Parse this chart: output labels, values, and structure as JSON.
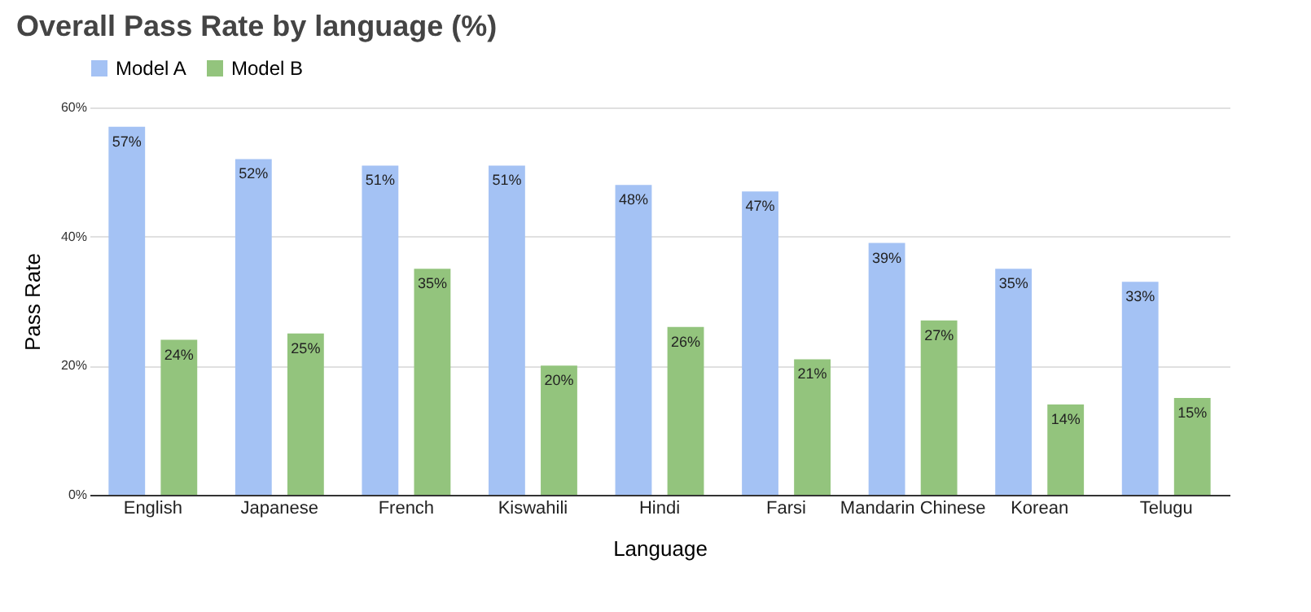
{
  "chart_data": {
    "type": "bar",
    "title": "Overall Pass Rate by language (%)",
    "xlabel": "Language",
    "ylabel": "Pass Rate",
    "categories": [
      "English",
      "Japanese",
      "French",
      "Kiswahili",
      "Hindi",
      "Farsi",
      "Mandarin Chinese",
      "Korean",
      "Telugu"
    ],
    "series": [
      {
        "name": "Model A",
        "color": "#a4c2f4",
        "values": [
          57,
          52,
          51,
          51,
          48,
          47,
          39,
          35,
          33
        ],
        "value_labels": [
          "57%",
          "52%",
          "51%",
          "51%",
          "48%",
          "47%",
          "39%",
          "35%",
          "33%"
        ]
      },
      {
        "name": "Model B",
        "color": "#93c47d",
        "values": [
          24,
          25,
          35,
          20,
          26,
          21,
          27,
          14,
          15
        ],
        "value_labels": [
          "24%",
          "25%",
          "35%",
          "20%",
          "26%",
          "21%",
          "27%",
          "14%",
          "15%"
        ]
      }
    ],
    "ylim": [
      0,
      60
    ],
    "yticks": [
      {
        "value": 0,
        "label": "0%"
      },
      {
        "value": 20,
        "label": "20%"
      },
      {
        "value": 40,
        "label": "40%"
      },
      {
        "value": 60,
        "label": "60%"
      }
    ],
    "grid": "y",
    "legend": "top"
  }
}
